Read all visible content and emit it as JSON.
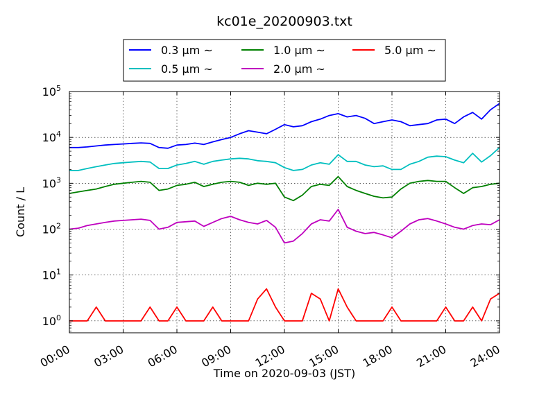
{
  "chart_data": {
    "type": "line",
    "title": "kc01e_20200903.txt",
    "xlabel": "Time on 2020-09-03 (JST)",
    "ylabel": "Count / L",
    "yscale": "log",
    "ylim": [
      0.55,
      100000
    ],
    "xlim": [
      0,
      24
    ],
    "grid": true,
    "legend_position": "top-center",
    "x_ticks": [
      "00:00",
      "03:00",
      "06:00",
      "09:00",
      "12:00",
      "15:00",
      "18:00",
      "21:00",
      "24:00"
    ],
    "y_ticks": [
      {
        "value": 1,
        "base": "10",
        "exp": "0"
      },
      {
        "value": 10,
        "base": "10",
        "exp": "1"
      },
      {
        "value": 100,
        "base": "10",
        "exp": "2"
      },
      {
        "value": 1000,
        "base": "10",
        "exp": "3"
      },
      {
        "value": 10000,
        "base": "10",
        "exp": "4"
      },
      {
        "value": 100000,
        "base": "10",
        "exp": "5"
      }
    ],
    "series": [
      {
        "name": "0.3 μm ~",
        "color": "#0000ff",
        "x": [
          0,
          0.5,
          1,
          1.5,
          2,
          2.5,
          3,
          3.5,
          4,
          4.5,
          5,
          5.5,
          6,
          6.5,
          7,
          7.5,
          8,
          8.5,
          9,
          9.5,
          10,
          10.5,
          11,
          11.5,
          12,
          12.5,
          13,
          13.5,
          14,
          14.5,
          15,
          15.5,
          16,
          16.5,
          17,
          17.5,
          18,
          18.5,
          19,
          19.5,
          20,
          20.5,
          21,
          21.5,
          22,
          22.5,
          23,
          23.5,
          24
        ],
        "y": [
          6000,
          6000,
          6200,
          6500,
          6800,
          7000,
          7200,
          7400,
          7600,
          7400,
          6000,
          5800,
          6800,
          7000,
          7500,
          7000,
          8000,
          9000,
          10000,
          12000,
          14000,
          13000,
          12000,
          15000,
          19000,
          17000,
          18000,
          22000,
          25000,
          30000,
          33000,
          28000,
          30000,
          26000,
          20000,
          22000,
          24000,
          22000,
          18000,
          19000,
          20000,
          24000,
          25000,
          20000,
          28000,
          35000,
          25000,
          40000,
          55000
        ]
      },
      {
        "name": "0.5 μm ~",
        "color": "#00bfbf",
        "x": [
          0,
          0.5,
          1,
          1.5,
          2,
          2.5,
          3,
          3.5,
          4,
          4.5,
          5,
          5.5,
          6,
          6.5,
          7,
          7.5,
          8,
          8.5,
          9,
          9.5,
          10,
          10.5,
          11,
          11.5,
          12,
          12.5,
          13,
          13.5,
          14,
          14.5,
          15,
          15.5,
          16,
          16.5,
          17,
          17.5,
          18,
          18.5,
          19,
          19.5,
          20,
          20.5,
          21,
          21.5,
          22,
          22.5,
          23,
          23.5,
          24
        ],
        "y": [
          1900,
          1900,
          2100,
          2300,
          2500,
          2700,
          2800,
          2900,
          3000,
          2900,
          2100,
          2100,
          2500,
          2700,
          3000,
          2600,
          3000,
          3200,
          3400,
          3500,
          3400,
          3100,
          3000,
          2800,
          2200,
          1900,
          2000,
          2500,
          2800,
          2600,
          4200,
          3000,
          3000,
          2500,
          2300,
          2400,
          2000,
          2000,
          2600,
          3000,
          3700,
          3900,
          3800,
          3200,
          2800,
          4500,
          2900,
          4000,
          6000
        ]
      },
      {
        "name": "1.0 μm ~",
        "color": "#008000",
        "x": [
          0,
          0.5,
          1,
          1.5,
          2,
          2.5,
          3,
          3.5,
          4,
          4.5,
          5,
          5.5,
          6,
          6.5,
          7,
          7.5,
          8,
          8.5,
          9,
          9.5,
          10,
          10.5,
          11,
          11.5,
          12,
          12.5,
          13,
          13.5,
          14,
          14.5,
          15,
          15.5,
          16,
          16.5,
          17,
          17.5,
          18,
          18.5,
          19,
          19.5,
          20,
          20.5,
          21,
          21.5,
          22,
          22.5,
          23,
          23.5,
          24
        ],
        "y": [
          600,
          650,
          700,
          750,
          850,
          950,
          1000,
          1050,
          1100,
          1050,
          700,
          750,
          900,
          950,
          1050,
          850,
          950,
          1050,
          1100,
          1050,
          900,
          1000,
          950,
          1000,
          500,
          420,
          550,
          850,
          950,
          900,
          1400,
          850,
          700,
          600,
          520,
          480,
          500,
          750,
          1000,
          1100,
          1150,
          1100,
          1100,
          800,
          600,
          800,
          850,
          950,
          1000
        ]
      },
      {
        "name": "2.0 μm ~",
        "color": "#bf00bf",
        "x": [
          0,
          0.5,
          1,
          1.5,
          2,
          2.5,
          3,
          3.5,
          4,
          4.5,
          5,
          5.5,
          6,
          6.5,
          7,
          7.5,
          8,
          8.5,
          9,
          9.5,
          10,
          10.5,
          11,
          11.5,
          12,
          12.5,
          13,
          13.5,
          14,
          14.5,
          15,
          15.5,
          16,
          16.5,
          17,
          17.5,
          18,
          18.5,
          19,
          19.5,
          20,
          20.5,
          21,
          21.5,
          22,
          22.5,
          23,
          23.5,
          24
        ],
        "y": [
          100,
          105,
          120,
          130,
          140,
          150,
          155,
          160,
          165,
          155,
          100,
          110,
          140,
          145,
          150,
          115,
          140,
          170,
          190,
          160,
          140,
          130,
          155,
          110,
          50,
          55,
          80,
          130,
          160,
          150,
          270,
          110,
          90,
          80,
          85,
          75,
          65,
          90,
          130,
          160,
          170,
          150,
          130,
          110,
          100,
          120,
          130,
          125,
          160
        ]
      },
      {
        "name": "5.0 μm ~",
        "color": "#ff0000",
        "x": [
          0,
          0.5,
          1,
          1.5,
          2,
          2.5,
          3,
          3.5,
          4,
          4.5,
          5,
          5.5,
          6,
          6.5,
          7,
          7.5,
          8,
          8.5,
          9,
          9.5,
          10,
          10.5,
          11,
          11.5,
          12,
          12.5,
          13,
          13.5,
          14,
          14.5,
          15,
          15.5,
          16,
          16.5,
          17,
          17.5,
          18,
          18.5,
          19,
          19.5,
          20,
          20.5,
          21,
          21.5,
          22,
          22.5,
          23,
          23.5,
          24
        ],
        "y": [
          1,
          1,
          1,
          2,
          1,
          1,
          1,
          1,
          1,
          2,
          1,
          1,
          2,
          1,
          1,
          1,
          2,
          1,
          1,
          1,
          1,
          3,
          5,
          2,
          1,
          1,
          1,
          4,
          3,
          1,
          5,
          2,
          1,
          1,
          1,
          1,
          2,
          1,
          1,
          1,
          1,
          1,
          2,
          1,
          1,
          2,
          1,
          3,
          4
        ]
      }
    ]
  },
  "legend": {
    "items": [
      {
        "label": "0.3 μm ~",
        "color": "#0000ff"
      },
      {
        "label": "0.5 μm ~",
        "color": "#00bfbf"
      },
      {
        "label": "1.0 μm ~",
        "color": "#008000"
      },
      {
        "label": "2.0 μm ~",
        "color": "#bf00bf"
      },
      {
        "label": "5.0 μm ~",
        "color": "#ff0000"
      }
    ]
  }
}
